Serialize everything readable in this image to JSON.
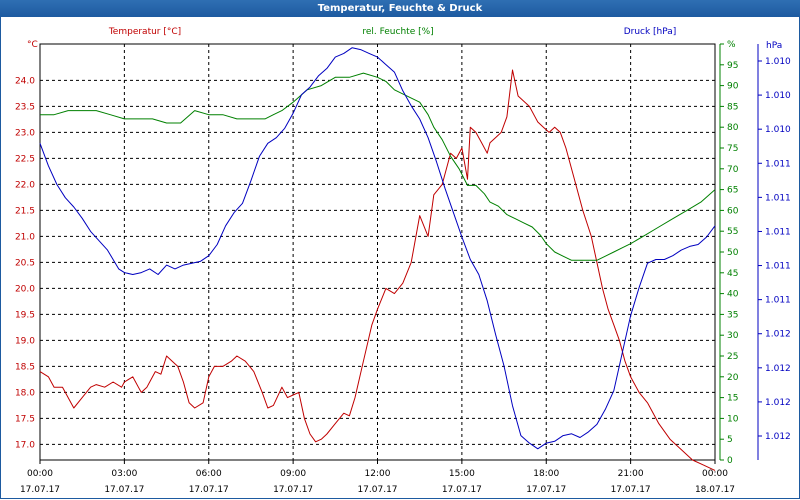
{
  "window": {
    "title": "Temperatur, Feuchte & Druck"
  },
  "chart_data": {
    "type": "line",
    "x_ticks": [
      {
        "time": "00:00",
        "date": "17.07.17"
      },
      {
        "time": "03:00",
        "date": "17.07.17"
      },
      {
        "time": "06:00",
        "date": "17.07.17"
      },
      {
        "time": "09:00",
        "date": "17.07.17"
      },
      {
        "time": "12:00",
        "date": "17.07.17"
      },
      {
        "time": "15:00",
        "date": "17.07.17"
      },
      {
        "time": "18:00",
        "date": "17.07.17"
      },
      {
        "time": "21:00",
        "date": "17.07.17"
      },
      {
        "time": "00:00",
        "date": "18.07.17"
      }
    ],
    "xlim": [
      0,
      24
    ],
    "grid": true,
    "axes": {
      "left": {
        "label": "Temperatur [°C]",
        "unit": "°C",
        "color": "#c00000",
        "ylim": [
          16.7,
          24.7
        ],
        "ticks": [
          "17.0",
          "17.5",
          "18.0",
          "18.5",
          "19.0",
          "19.5",
          "20.0",
          "20.5",
          "21.0",
          "21.5",
          "22.0",
          "22.5",
          "23.0",
          "23.5",
          "24.0"
        ]
      },
      "middle": {
        "label": "rel. Feuchte [%]",
        "unit": "%",
        "color": "#008000",
        "ylim": [
          0,
          100
        ],
        "ticks": [
          "0",
          "5",
          "10",
          "15",
          "20",
          "25",
          "30",
          "35",
          "40",
          "45",
          "50",
          "55",
          "60",
          "65",
          "70",
          "75",
          "80",
          "85",
          "90",
          "95",
          "%"
        ]
      },
      "right": {
        "label": "Druck [hPa]",
        "unit": "hPa",
        "color": "#0000c0",
        "ylim": [
          1009.93,
          1012.15
        ],
        "ticks": [
          "1.010",
          "1.010",
          "1.010",
          "1.011",
          "1.011",
          "1.011",
          "1.011",
          "1.011",
          "1.012",
          "1.012",
          "1.012",
          "1.012"
        ]
      }
    },
    "series": [
      {
        "name": "Temperatur [°C]",
        "axis": "left",
        "color": "#c00000",
        "x": [
          0,
          0.3,
          0.5,
          0.8,
          1.2,
          1.5,
          1.8,
          2.0,
          2.3,
          2.6,
          2.9,
          3.0,
          3.3,
          3.5,
          3.6,
          3.8,
          3.9,
          4.1,
          4.3,
          4.5,
          4.7,
          4.9,
          5.1,
          5.3,
          5.5,
          5.8,
          6.0,
          6.2,
          6.5,
          6.8,
          7.0,
          7.3,
          7.6,
          7.9,
          8.1,
          8.3,
          8.6,
          8.8,
          9.0,
          9.2,
          9.4,
          9.6,
          9.8,
          10.0,
          10.2,
          10.5,
          10.8,
          11.0,
          11.2,
          11.5,
          11.8,
          12.0,
          12.3,
          12.6,
          12.9,
          13.2,
          13.5,
          13.8,
          14.0,
          14.3,
          14.6,
          14.8,
          15.0,
          15.2,
          15.3,
          15.5,
          15.7,
          15.9,
          16.0,
          16.2,
          16.4,
          16.6,
          16.8,
          17.0,
          17.2,
          17.4,
          17.6,
          17.7,
          17.9,
          18.1,
          18.3,
          18.5,
          18.7,
          19.0,
          19.3,
          19.6,
          19.8,
          20.0,
          20.2,
          20.4,
          20.6,
          20.8,
          21.0,
          21.3,
          21.6,
          22.0,
          22.4,
          22.8,
          23.2,
          23.6,
          24.0
        ],
        "y": [
          18.4,
          18.3,
          18.1,
          18.1,
          17.7,
          17.9,
          18.1,
          18.15,
          18.1,
          18.2,
          18.1,
          18.2,
          18.3,
          18.1,
          18.0,
          18.1,
          18.2,
          18.4,
          18.35,
          18.7,
          18.6,
          18.5,
          18.2,
          17.8,
          17.7,
          17.8,
          18.3,
          18.5,
          18.5,
          18.6,
          18.7,
          18.6,
          18.4,
          18.0,
          17.7,
          17.75,
          18.1,
          17.9,
          17.95,
          18.0,
          17.5,
          17.2,
          17.05,
          17.1,
          17.2,
          17.4,
          17.6,
          17.55,
          17.9,
          18.6,
          19.3,
          19.6,
          20.0,
          19.9,
          20.1,
          20.5,
          21.4,
          21.0,
          21.8,
          22.0,
          22.6,
          22.5,
          22.7,
          22.1,
          23.1,
          23.0,
          22.8,
          22.6,
          22.8,
          22.9,
          23.0,
          23.3,
          24.2,
          23.7,
          23.6,
          23.5,
          23.3,
          23.2,
          23.1,
          23.0,
          23.1,
          23.0,
          22.7,
          22.1,
          21.5,
          21.0,
          20.5,
          20.0,
          19.6,
          19.3,
          19.0,
          18.6,
          18.3,
          18.0,
          17.8,
          17.4,
          17.1,
          16.9,
          16.7,
          16.6,
          16.5
        ]
      },
      {
        "name": "rel. Feuchte [%]",
        "axis": "middle",
        "color": "#008000",
        "x": [
          0,
          0.5,
          1.0,
          1.5,
          2.0,
          2.5,
          3.0,
          3.5,
          4.0,
          4.5,
          5.0,
          5.5,
          6.0,
          6.5,
          7.0,
          7.5,
          8.0,
          8.3,
          8.6,
          9.0,
          9.5,
          10.0,
          10.5,
          11.0,
          11.5,
          12.0,
          12.3,
          12.6,
          12.9,
          13.2,
          13.5,
          13.8,
          14.0,
          14.3,
          14.6,
          14.9,
          15.2,
          15.5,
          15.8,
          16.0,
          16.3,
          16.6,
          16.9,
          17.2,
          17.5,
          17.8,
          18.0,
          18.3,
          18.6,
          18.9,
          19.2,
          19.5,
          19.8,
          20.1,
          20.4,
          20.7,
          21.0,
          21.5,
          22.0,
          22.5,
          23.0,
          23.5,
          24.0
        ],
        "y": [
          83,
          83,
          84,
          84,
          84,
          83,
          82,
          82,
          82,
          81,
          81,
          84,
          83,
          83,
          82,
          82,
          82,
          83,
          84,
          86,
          89,
          90,
          92,
          92,
          93,
          92,
          91,
          89,
          88,
          87,
          86,
          83,
          80,
          77,
          73,
          70,
          66,
          66,
          64,
          62,
          61,
          59,
          58,
          57,
          56,
          54,
          52,
          50,
          49,
          48,
          48,
          48,
          48,
          49,
          50,
          51,
          52,
          54,
          56,
          58,
          60,
          62,
          65
        ]
      },
      {
        "name": "Druck [hPa]",
        "axis": "right",
        "color": "#0000c0",
        "x": [
          0,
          0.3,
          0.6,
          0.9,
          1.2,
          1.5,
          1.8,
          2.1,
          2.4,
          2.6,
          2.8,
          3.0,
          3.3,
          3.6,
          3.9,
          4.2,
          4.5,
          4.8,
          5.1,
          5.4,
          5.7,
          6.0,
          6.3,
          6.6,
          6.9,
          7.2,
          7.5,
          7.8,
          8.1,
          8.4,
          8.7,
          9.0,
          9.3,
          9.6,
          9.9,
          10.2,
          10.5,
          10.8,
          11.1,
          11.4,
          11.7,
          12.0,
          12.3,
          12.6,
          12.9,
          13.2,
          13.5,
          13.8,
          14.1,
          14.4,
          14.7,
          15.0,
          15.3,
          15.6,
          15.9,
          16.2,
          16.5,
          16.8,
          17.1,
          17.4,
          17.7,
          18.0,
          18.3,
          18.6,
          18.9,
          19.2,
          19.5,
          19.8,
          20.1,
          20.4,
          20.7,
          21.0,
          21.3,
          21.6,
          21.9,
          22.2,
          22.5,
          22.8,
          23.1,
          23.4,
          23.7,
          24.0
        ],
        "y": [
          1011.62,
          1011.5,
          1011.4,
          1011.33,
          1011.28,
          1011.22,
          1011.15,
          1011.1,
          1011.05,
          1011.0,
          1010.95,
          1010.93,
          1010.92,
          1010.93,
          1010.95,
          1010.92,
          1010.97,
          1010.95,
          1010.97,
          1010.98,
          1010.99,
          1011.02,
          1011.08,
          1011.18,
          1011.25,
          1011.3,
          1011.42,
          1011.55,
          1011.62,
          1011.65,
          1011.7,
          1011.78,
          1011.88,
          1011.92,
          1011.98,
          1012.02,
          1012.08,
          1012.1,
          1012.13,
          1012.12,
          1012.1,
          1012.08,
          1012.04,
          1012.0,
          1011.9,
          1011.82,
          1011.75,
          1011.65,
          1011.52,
          1011.38,
          1011.25,
          1011.12,
          1011.0,
          1010.92,
          1010.78,
          1010.6,
          1010.43,
          1010.22,
          1010.06,
          1010.02,
          1009.99,
          1010.02,
          1010.03,
          1010.06,
          1010.07,
          1010.05,
          1010.08,
          1010.12,
          1010.2,
          1010.3,
          1010.5,
          1010.7,
          1010.85,
          1010.98,
          1011.0,
          1011.0,
          1011.02,
          1011.05,
          1011.07,
          1011.08,
          1011.12,
          1011.18
        ]
      }
    ]
  }
}
